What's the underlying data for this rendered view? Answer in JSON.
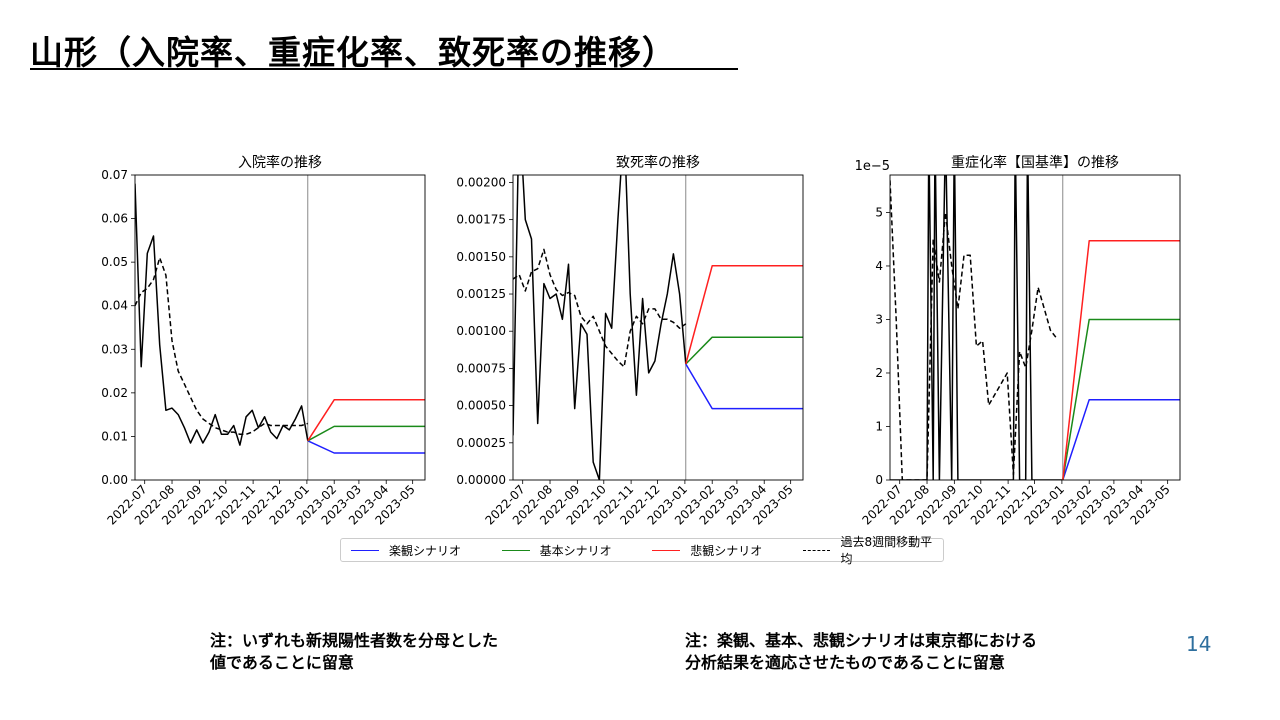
{
  "slide": {
    "title": "山形（入院率、重症化率、致死率の推移）",
    "note_left": "注：いずれも新規陽性者数を分母とした\n値であることに留意",
    "note_right": "注：楽観、基本、悲観シナリオは東京都における\n分析結果を適応させたものであることに留意",
    "page_number": "14"
  },
  "legend": [
    {
      "label": "楽観シナリオ",
      "color": "#1f1fff",
      "style": "solid"
    },
    {
      "label": "基本シナリオ",
      "color": "#1a8a1a",
      "style": "solid"
    },
    {
      "label": "悲観シナリオ",
      "color": "#ff2020",
      "style": "solid"
    },
    {
      "label": "過去8週間移動平均",
      "color": "#000000",
      "style": "dashed"
    }
  ],
  "chart_data": [
    {
      "type": "line",
      "title": "入院率の推移",
      "multiplier": "",
      "ylim": [
        0,
        0.07
      ],
      "yticks": [
        "0.00",
        "0.01",
        "0.02",
        "0.03",
        "0.04",
        "0.05",
        "0.06",
        "0.07"
      ],
      "ytick_values": [
        0,
        0.01,
        0.02,
        0.03,
        0.04,
        0.05,
        0.06,
        0.07
      ],
      "xlim": [
        "2022-06-20",
        "2023-05-15"
      ],
      "xticks": [
        "2022-07",
        "2022-08",
        "2022-09",
        "2022-10",
        "2022-11",
        "2022-12",
        "2023-01",
        "2023-02",
        "2023-03",
        "2023-04",
        "2023-05"
      ],
      "xtick_dates": [
        "2022-07-01",
        "2022-08-01",
        "2022-09-01",
        "2022-10-01",
        "2022-11-01",
        "2022-12-01",
        "2023-01-01",
        "2023-02-01",
        "2023-03-01",
        "2023-04-01",
        "2023-05-01"
      ],
      "vline_date": "2023-01-02",
      "series": [
        {
          "role": "actual",
          "color": "#000000",
          "dash": "",
          "x": [
            "2022-06-20",
            "2022-06-27",
            "2022-07-04",
            "2022-07-11",
            "2022-07-18",
            "2022-07-25",
            "2022-08-01",
            "2022-08-08",
            "2022-08-15",
            "2022-08-22",
            "2022-08-29",
            "2022-09-05",
            "2022-09-12",
            "2022-09-19",
            "2022-09-26",
            "2022-10-03",
            "2022-10-10",
            "2022-10-17",
            "2022-10-24",
            "2022-10-31",
            "2022-11-07",
            "2022-11-14",
            "2022-11-21",
            "2022-11-28",
            "2022-12-05",
            "2022-12-12",
            "2022-12-19",
            "2022-12-26",
            "2023-01-02"
          ],
          "y": [
            0.068,
            0.026,
            0.052,
            0.056,
            0.031,
            0.016,
            0.0165,
            0.015,
            0.012,
            0.0085,
            0.0115,
            0.0085,
            0.011,
            0.015,
            0.0105,
            0.0105,
            0.0125,
            0.008,
            0.0145,
            0.016,
            0.012,
            0.0145,
            0.011,
            0.0095,
            0.0125,
            0.0115,
            0.014,
            0.017,
            0.009
          ]
        },
        {
          "role": "moving-average",
          "color": "#000000",
          "dash": "5,3",
          "x": [
            "2022-06-20",
            "2022-06-27",
            "2022-07-04",
            "2022-07-11",
            "2022-07-18",
            "2022-07-25",
            "2022-08-01",
            "2022-08-08",
            "2022-08-15",
            "2022-08-22",
            "2022-08-29",
            "2022-09-05",
            "2022-09-12",
            "2022-09-19",
            "2022-09-26",
            "2022-10-03",
            "2022-10-10",
            "2022-10-17",
            "2022-10-24",
            "2022-10-31",
            "2022-11-07",
            "2022-11-14",
            "2022-11-21",
            "2022-11-28",
            "2022-12-05",
            "2022-12-12",
            "2022-12-19",
            "2022-12-26",
            "2023-01-02"
          ],
          "y": [
            0.04,
            0.043,
            0.044,
            0.046,
            0.051,
            0.047,
            0.032,
            0.025,
            0.022,
            0.019,
            0.016,
            0.014,
            0.013,
            0.012,
            0.0115,
            0.011,
            0.011,
            0.0105,
            0.0105,
            0.011,
            0.012,
            0.013,
            0.0125,
            0.0125,
            0.0125,
            0.0125,
            0.0125,
            0.0125,
            0.013
          ]
        },
        {
          "role": "optimistic",
          "color": "#1f1fff",
          "dash": "",
          "x": [
            "2023-01-02",
            "2023-02-01",
            "2023-05-15"
          ],
          "y": [
            0.009,
            0.0062,
            0.0062
          ]
        },
        {
          "role": "base",
          "color": "#1a8a1a",
          "dash": "",
          "x": [
            "2023-01-02",
            "2023-02-01",
            "2023-05-15"
          ],
          "y": [
            0.009,
            0.0123,
            0.0123
          ]
        },
        {
          "role": "pessimistic",
          "color": "#ff2020",
          "dash": "",
          "x": [
            "2023-01-02",
            "2023-02-01",
            "2023-05-15"
          ],
          "y": [
            0.009,
            0.0184,
            0.0184
          ]
        }
      ]
    },
    {
      "type": "line",
      "title": "致死率の推移",
      "multiplier": "",
      "ylim": [
        0,
        0.00205
      ],
      "yticks": [
        "0.00000",
        "0.00025",
        "0.00050",
        "0.00075",
        "0.00100",
        "0.00125",
        "0.00150",
        "0.00175",
        "0.00200"
      ],
      "ytick_values": [
        0,
        0.00025,
        0.0005,
        0.00075,
        0.001,
        0.00125,
        0.0015,
        0.00175,
        0.002
      ],
      "xlim": [
        "2022-06-20",
        "2023-05-15"
      ],
      "xticks": [
        "2022-07",
        "2022-08",
        "2022-09",
        "2022-10",
        "2022-11",
        "2022-12",
        "2023-01",
        "2023-02",
        "2023-03",
        "2023-04",
        "2023-05"
      ],
      "xtick_dates": [
        "2022-07-01",
        "2022-08-01",
        "2022-09-01",
        "2022-10-01",
        "2022-11-01",
        "2022-12-01",
        "2023-01-01",
        "2023-02-01",
        "2023-03-01",
        "2023-04-01",
        "2023-05-01"
      ],
      "vline_date": "2023-01-02",
      "series": [
        {
          "role": "actual",
          "color": "#000000",
          "dash": "",
          "x": [
            "2022-06-20",
            "2022-06-27",
            "2022-07-04",
            "2022-07-11",
            "2022-07-18",
            "2022-07-25",
            "2022-08-01",
            "2022-08-08",
            "2022-08-15",
            "2022-08-22",
            "2022-08-29",
            "2022-09-05",
            "2022-09-12",
            "2022-09-19",
            "2022-09-26",
            "2022-10-03",
            "2022-10-10",
            "2022-10-17",
            "2022-10-24",
            "2022-10-31",
            "2022-11-07",
            "2022-11-14",
            "2022-11-21",
            "2022-11-28",
            "2022-12-05",
            "2022-12-12",
            "2022-12-19",
            "2022-12-26",
            "2023-01-02"
          ],
          "y": [
            0.0003,
            0.0025,
            0.00175,
            0.00162,
            0.00038,
            0.00132,
            0.00122,
            0.00125,
            0.00108,
            0.00145,
            0.00048,
            0.00105,
            0.00098,
            0.00012,
            0.0,
            0.00112,
            0.00102,
            0.00175,
            0.0024,
            0.00125,
            0.00057,
            0.00122,
            0.00072,
            0.0008,
            0.00105,
            0.00125,
            0.00152,
            0.00125,
            0.00078
          ]
        },
        {
          "role": "moving-average",
          "color": "#000000",
          "dash": "5,3",
          "x": [
            "2022-06-20",
            "2022-06-27",
            "2022-07-04",
            "2022-07-11",
            "2022-07-18",
            "2022-07-25",
            "2022-08-01",
            "2022-08-08",
            "2022-08-15",
            "2022-08-22",
            "2022-08-29",
            "2022-09-05",
            "2022-09-12",
            "2022-09-19",
            "2022-09-26",
            "2022-10-03",
            "2022-10-10",
            "2022-10-17",
            "2022-10-24",
            "2022-10-31",
            "2022-11-07",
            "2022-11-14",
            "2022-11-21",
            "2022-11-28",
            "2022-12-05",
            "2022-12-12",
            "2022-12-19",
            "2022-12-26",
            "2023-01-02"
          ],
          "y": [
            0.00135,
            0.00138,
            0.00127,
            0.0014,
            0.00142,
            0.00155,
            0.00138,
            0.00128,
            0.00124,
            0.00126,
            0.00124,
            0.0011,
            0.00105,
            0.0011,
            0.001,
            0.0009,
            0.00085,
            0.0008,
            0.00076,
            0.001,
            0.0011,
            0.00105,
            0.00115,
            0.00115,
            0.00108,
            0.00108,
            0.00106,
            0.00102,
            0.00105
          ]
        },
        {
          "role": "optimistic",
          "color": "#1f1fff",
          "dash": "",
          "x": [
            "2023-01-02",
            "2023-02-01",
            "2023-05-15"
          ],
          "y": [
            0.00078,
            0.00048,
            0.00048
          ]
        },
        {
          "role": "base",
          "color": "#1a8a1a",
          "dash": "",
          "x": [
            "2023-01-02",
            "2023-02-01",
            "2023-05-15"
          ],
          "y": [
            0.00078,
            0.00096,
            0.00096
          ]
        },
        {
          "role": "pessimistic",
          "color": "#ff2020",
          "dash": "",
          "x": [
            "2023-01-02",
            "2023-02-01",
            "2023-05-15"
          ],
          "y": [
            0.00078,
            0.00144,
            0.00144
          ]
        }
      ]
    },
    {
      "type": "line",
      "title": "重症化率【国基準】の推移",
      "multiplier": "1e−5",
      "ylim": [
        0,
        5.7
      ],
      "yticks": [
        "0",
        "1",
        "2",
        "3",
        "4",
        "5"
      ],
      "ytick_values": [
        0,
        1,
        2,
        3,
        4,
        5
      ],
      "xlim": [
        "2022-06-20",
        "2023-05-15"
      ],
      "xticks": [
        "2022-07",
        "2022-08",
        "2022-09",
        "2022-10",
        "2022-11",
        "2022-12",
        "2023-01",
        "2023-02",
        "2023-03",
        "2023-04",
        "2023-05"
      ],
      "xtick_dates": [
        "2022-07-01",
        "2022-08-01",
        "2022-09-01",
        "2022-10-01",
        "2022-11-01",
        "2022-12-01",
        "2023-01-01",
        "2023-02-01",
        "2023-03-01",
        "2023-04-01",
        "2023-05-01"
      ],
      "vline_date": "2023-01-02",
      "series": [
        {
          "role": "actual",
          "color": "#000000",
          "dash": "",
          "x": [
            "2022-06-20",
            "2022-06-27",
            "2022-07-04",
            "2022-07-11",
            "2022-07-18",
            "2022-07-25",
            "2022-08-01",
            "2022-08-03",
            "2022-08-08",
            "2022-08-10",
            "2022-08-15",
            "2022-08-22",
            "2022-08-29",
            "2022-09-01",
            "2022-09-05",
            "2022-09-12",
            "2022-09-19",
            "2022-09-26",
            "2022-10-03",
            "2022-10-10",
            "2022-10-17",
            "2022-10-24",
            "2022-10-31",
            "2022-11-07",
            "2022-11-09",
            "2022-11-14",
            "2022-11-21",
            "2022-11-23",
            "2022-11-28",
            "2022-12-05",
            "2022-12-12",
            "2022-12-19",
            "2022-12-26",
            "2023-01-02"
          ],
          "y": [
            0,
            0,
            0,
            0,
            0,
            0,
            0,
            6.5,
            0,
            6.5,
            0,
            6.5,
            0,
            6.5,
            0,
            0,
            0,
            0,
            0,
            0,
            0,
            0,
            0,
            0,
            6.5,
            0,
            0,
            6.5,
            0,
            0,
            0,
            0,
            0,
            0
          ]
        },
        {
          "role": "moving-average",
          "color": "#000000",
          "dash": "5,3",
          "x": [
            "2022-06-20",
            "2022-06-27",
            "2022-07-04",
            "2022-07-11",
            "2022-07-18",
            "2022-07-25",
            "2022-08-01",
            "2022-08-08",
            "2022-08-15",
            "2022-08-22",
            "2022-08-29",
            "2022-09-05",
            "2022-09-12",
            "2022-09-19",
            "2022-09-26",
            "2022-10-03",
            "2022-10-10",
            "2022-10-17",
            "2022-10-24",
            "2022-10-31",
            "2022-11-07",
            "2022-11-14",
            "2022-11-21",
            "2022-11-28",
            "2022-12-05",
            "2022-12-12",
            "2022-12-19",
            "2022-12-26"
          ],
          "y": [
            5.6,
            3.0,
            0,
            0,
            0,
            0,
            0,
            4.5,
            3.7,
            5.0,
            4.0,
            3.2,
            4.2,
            4.2,
            2.5,
            2.6,
            1.4,
            1.6,
            1.8,
            2.0,
            0.1,
            2.4,
            2.1,
            2.8,
            3.6,
            3.2,
            2.8,
            2.65
          ]
        },
        {
          "role": "optimistic",
          "color": "#1f1fff",
          "dash": "",
          "x": [
            "2023-01-02",
            "2023-02-01",
            "2023-05-15"
          ],
          "y": [
            0,
            1.5,
            1.5
          ]
        },
        {
          "role": "base",
          "color": "#1a8a1a",
          "dash": "",
          "x": [
            "2023-01-02",
            "2023-02-01",
            "2023-05-15"
          ],
          "y": [
            0,
            3.0,
            3.0
          ]
        },
        {
          "role": "pessimistic",
          "color": "#ff2020",
          "dash": "",
          "x": [
            "2023-01-02",
            "2023-02-01",
            "2023-05-15"
          ],
          "y": [
            0,
            4.47,
            4.47
          ]
        }
      ]
    }
  ]
}
